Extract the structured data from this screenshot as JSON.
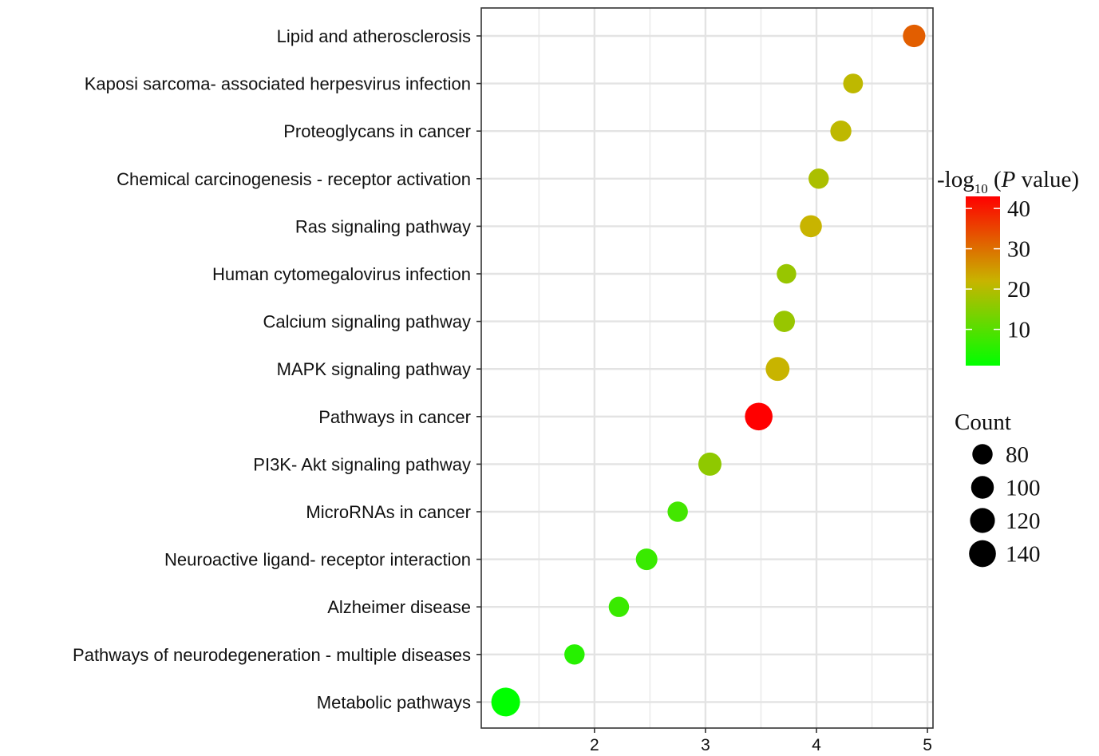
{
  "chart_data": {
    "type": "scatter",
    "categories": [
      "Lipid and atherosclerosis",
      "Kaposi sarcoma- associated herpesvirus infection",
      "Proteoglycans in cancer",
      "Chemical carcinogenesis -  receptor activation",
      "Ras signaling pathway",
      "Human cytomegalovirus infection",
      "Calcium signaling pathway",
      "MAPK signaling pathway",
      "Pathways in cancer",
      "PI3K- Akt signaling pathway",
      "MicroRNAs in cancer",
      "Neuroactive ligand- receptor interaction",
      "Alzheimer disease",
      "Pathways of neurodegeneration -  multiple diseases",
      "Metabolic pathways"
    ],
    "points": [
      {
        "category": "Lipid and atherosclerosis",
        "x": 4.88,
        "count": 98,
        "neglog10p": 32
      },
      {
        "category": "Kaposi sarcoma- associated herpesvirus infection",
        "x": 4.33,
        "count": 76,
        "neglog10p": 21
      },
      {
        "category": "Proteoglycans in cancer",
        "x": 4.22,
        "count": 86,
        "neglog10p": 21
      },
      {
        "category": "Chemical carcinogenesis -  receptor activation",
        "x": 4.02,
        "count": 80,
        "neglog10p": 19
      },
      {
        "category": "Ras signaling pathway",
        "x": 3.95,
        "count": 94,
        "neglog10p": 22
      },
      {
        "category": "Human cytomegalovirus infection",
        "x": 3.73,
        "count": 74,
        "neglog10p": 17
      },
      {
        "category": "Calcium signaling pathway",
        "x": 3.71,
        "count": 88,
        "neglog10p": 17
      },
      {
        "category": "MAPK signaling pathway",
        "x": 3.65,
        "count": 110,
        "neglog10p": 22
      },
      {
        "category": "Pathways in cancer",
        "x": 3.48,
        "count": 148,
        "neglog10p": 43
      },
      {
        "category": "PI3K- Akt signaling pathway",
        "x": 3.04,
        "count": 104,
        "neglog10p": 16
      },
      {
        "category": "MicroRNAs in cancer",
        "x": 2.75,
        "count": 80,
        "neglog10p": 8
      },
      {
        "category": "Neuroactive ligand- receptor interaction",
        "x": 2.47,
        "count": 90,
        "neglog10p": 7
      },
      {
        "category": "Alzheimer disease",
        "x": 2.22,
        "count": 80,
        "neglog10p": 7
      },
      {
        "category": "Pathways of neurodegeneration -  multiple diseases",
        "x": 1.82,
        "count": 80,
        "neglog10p": 5
      },
      {
        "category": "Metabolic pathways",
        "x": 1.2,
        "count": 160,
        "neglog10p": 1
      }
    ],
    "x_ticks": [
      2,
      3,
      4,
      5
    ],
    "xlim": [
      0.98,
      5.05
    ],
    "xlabel": "",
    "ylabel": "",
    "grid": true,
    "color_legend": {
      "title_prefix": "-log",
      "title_subscript": "10",
      "title_open": " (",
      "title_p": "P",
      "title_suffix": " value)",
      "ticks": [
        10,
        20,
        30,
        40
      ],
      "range": [
        1,
        43
      ],
      "low_color": "#00ff00",
      "mid_color": "#c8b400",
      "high_color": "#ff0000"
    },
    "size_legend": {
      "title": "Count",
      "values": [
        80,
        100,
        120,
        140
      ]
    },
    "legend_position": "right"
  }
}
